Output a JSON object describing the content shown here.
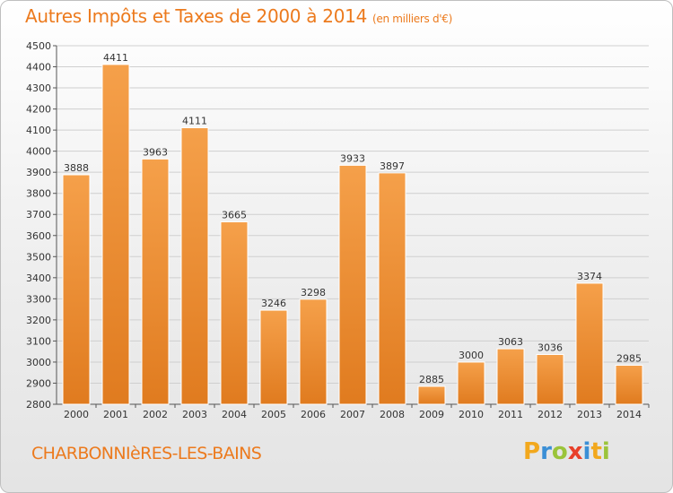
{
  "chart_data": {
    "type": "bar",
    "title": "Autres Impôts et Taxes de 2000 à 2014",
    "subtitle": "(en milliers d'€)",
    "xlabel": "",
    "ylabel": "",
    "categories": [
      "2000",
      "2001",
      "2002",
      "2003",
      "2004",
      "2005",
      "2006",
      "2007",
      "2008",
      "2009",
      "2010",
      "2011",
      "2012",
      "2013",
      "2014"
    ],
    "values": [
      3888,
      4411,
      3963,
      4111,
      3665,
      3246,
      3298,
      3933,
      3897,
      2885,
      3000,
      3063,
      3036,
      3374,
      2985
    ],
    "ylim": [
      2800,
      4500
    ],
    "yticks": [
      2800,
      2900,
      3000,
      3100,
      3200,
      3300,
      3400,
      3500,
      3600,
      3700,
      3800,
      3900,
      4000,
      4100,
      4200,
      4300,
      4400,
      4500
    ],
    "grid": true,
    "bar_color_light": "#f5a04a",
    "bar_color_dark": "#e07b1f"
  },
  "footer": {
    "town": "CHARBONNIèRES-LES-BAINS",
    "logo_letters": [
      "P",
      "r",
      "o",
      "x",
      "i",
      "t",
      "i"
    ],
    "logo_colors": [
      "#f2a81d",
      "#3a8fd6",
      "#9bc43a",
      "#e8402a",
      "#3a8fd6",
      "#f2a81d",
      "#9bc43a"
    ]
  },
  "colors": {
    "accent": "#ec7a1d",
    "grid": "#cfcfcf"
  }
}
